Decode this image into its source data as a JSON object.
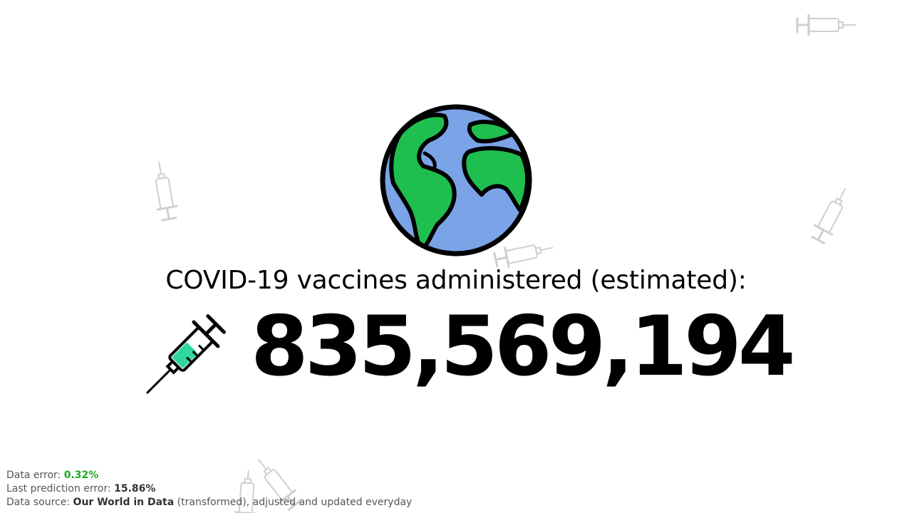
{
  "headline": "COVID-19 vaccines administered (estimated):",
  "counter_value": "835,569,194",
  "icons": {
    "globe": "globe-icon",
    "main": "syringe-icon",
    "background": "syringe-icon"
  },
  "colors": {
    "ocean": "#7ba3e8",
    "land": "#1fbf4f",
    "syringe_liquid": "#2ed6a0",
    "error_value": "#1fa81f"
  },
  "footer": {
    "data_error_label": "Data error:",
    "data_error_value": "0.32%",
    "prediction_error_label": "Last prediction error:",
    "prediction_error_value": "15.86%",
    "source_label": "Data source:",
    "source_name": "Our World in Data",
    "source_suffix": "(transformed), adjusted and updated everyday"
  }
}
